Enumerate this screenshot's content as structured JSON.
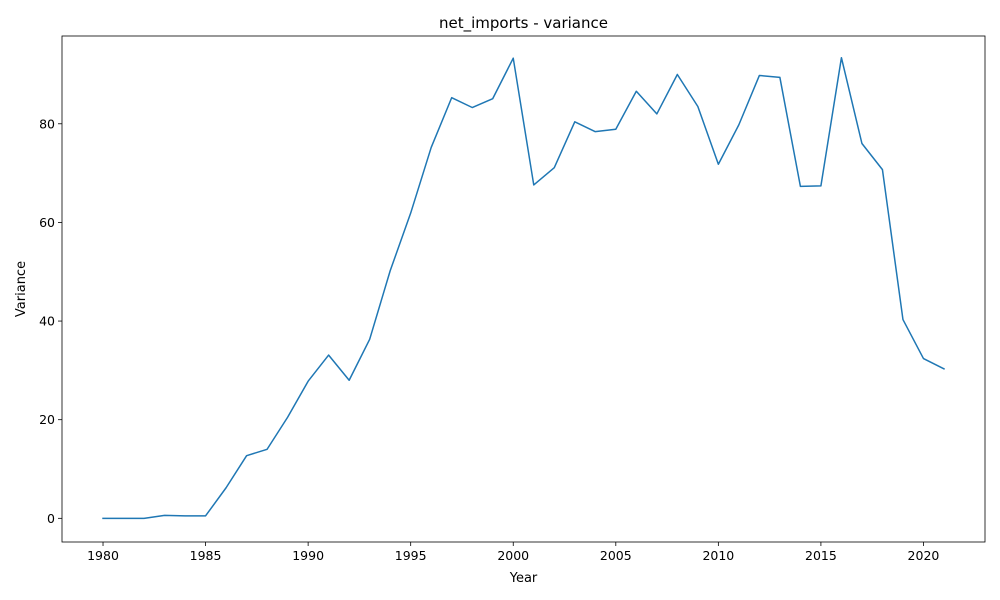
{
  "chart_data": {
    "type": "line",
    "title": "net_imports - variance",
    "xlabel": "Year",
    "ylabel": "Variance",
    "xlim": [
      1978.0,
      2023.0
    ],
    "ylim": [
      -4.8,
      97.8
    ],
    "xticks": [
      1980,
      1985,
      1990,
      1995,
      2000,
      2005,
      2010,
      2015,
      2020
    ],
    "yticks": [
      0,
      20,
      40,
      60,
      80
    ],
    "grid": false,
    "series_color": "#1f77b4",
    "series": [
      {
        "name": "variance",
        "x": [
          1980,
          1981,
          1982,
          1983,
          1984,
          1985,
          1986,
          1987,
          1988,
          1989,
          1990,
          1991,
          1992,
          1993,
          1994,
          1995,
          1996,
          1997,
          1998,
          1999,
          2000,
          2001,
          2002,
          2003,
          2004,
          2005,
          2006,
          2007,
          2008,
          2009,
          2010,
          2011,
          2012,
          2013,
          2014,
          2015,
          2016,
          2017,
          2018,
          2019,
          2020,
          2021
        ],
        "values": [
          0.0,
          0.0,
          0.0,
          0.6,
          0.5,
          0.5,
          6.2,
          12.7,
          14.0,
          20.5,
          27.8,
          33.1,
          28.0,
          36.3,
          50.2,
          61.9,
          75.2,
          85.3,
          83.3,
          85.1,
          93.3,
          67.6,
          71.1,
          80.4,
          78.4,
          78.9,
          86.6,
          82.0,
          90.0,
          83.5,
          71.8,
          79.8,
          89.8,
          89.4,
          67.3,
          67.4,
          93.4,
          76.0,
          70.7,
          40.3,
          32.4,
          30.3
        ]
      }
    ]
  }
}
